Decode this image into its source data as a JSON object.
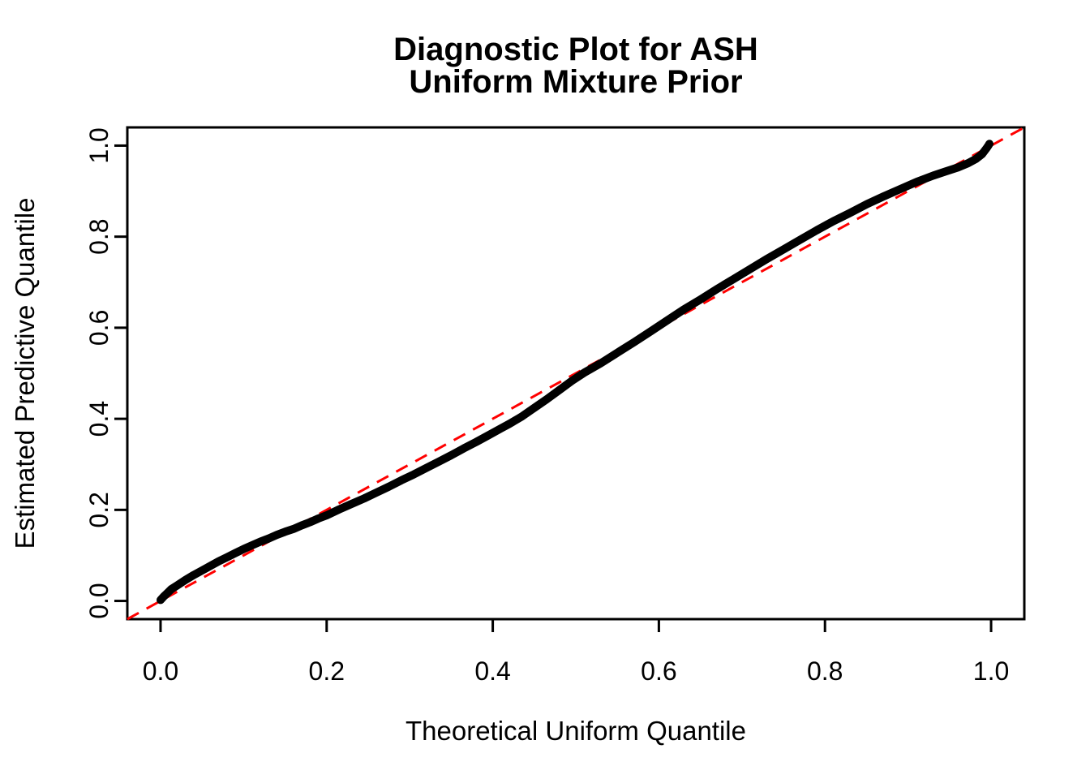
{
  "chart_data": {
    "type": "line",
    "title": "Diagnostic Plot for ASH\nUniform Mixture Prior",
    "title_lines": [
      "Diagnostic Plot for ASH",
      "Uniform Mixture Prior"
    ],
    "xlabel": "Theoretical Uniform Quantile",
    "ylabel": "Estimated Predictive Quantile",
    "xlim": [
      -0.04,
      1.04
    ],
    "ylim": [
      -0.04,
      1.04
    ],
    "x_ticks": [
      0.0,
      0.2,
      0.4,
      0.6,
      0.8,
      1.0
    ],
    "x_tick_labels": [
      "0.0",
      "0.2",
      "0.4",
      "0.6",
      "0.8",
      "1.0"
    ],
    "y_ticks": [
      0.0,
      0.2,
      0.4,
      0.6,
      0.8,
      1.0
    ],
    "y_tick_labels": [
      "0.0",
      "0.2",
      "0.4",
      "0.6",
      "0.8",
      "1.0"
    ],
    "grid": false,
    "legend": "none",
    "colors": {
      "curve": "#000000",
      "diagonal": "#FF0000",
      "background": "#FFFFFF",
      "box": "#000000"
    },
    "series": [
      {
        "name": "estimated-predictive-quantiles",
        "type": "line",
        "color": "#000000",
        "description": "Thick black QQ curve of estimated predictive quantile vs theoretical uniform quantile",
        "points": [
          [
            0.0,
            0.002
          ],
          [
            0.004,
            0.01
          ],
          [
            0.008,
            0.017
          ],
          [
            0.013,
            0.026
          ],
          [
            0.02,
            0.034
          ],
          [
            0.03,
            0.046
          ],
          [
            0.04,
            0.057
          ],
          [
            0.05,
            0.067
          ],
          [
            0.06,
            0.077
          ],
          [
            0.07,
            0.087
          ],
          [
            0.08,
            0.096
          ],
          [
            0.09,
            0.105
          ],
          [
            0.1,
            0.114
          ],
          [
            0.11,
            0.122
          ],
          [
            0.12,
            0.13
          ],
          [
            0.13,
            0.137
          ],
          [
            0.14,
            0.145
          ],
          [
            0.15,
            0.152
          ],
          [
            0.16,
            0.158
          ],
          [
            0.17,
            0.166
          ],
          [
            0.18,
            0.173
          ],
          [
            0.19,
            0.181
          ],
          [
            0.2,
            0.188
          ],
          [
            0.215,
            0.201
          ],
          [
            0.23,
            0.213
          ],
          [
            0.245,
            0.225
          ],
          [
            0.26,
            0.238
          ],
          [
            0.275,
            0.251
          ],
          [
            0.29,
            0.265
          ],
          [
            0.305,
            0.278
          ],
          [
            0.32,
            0.292
          ],
          [
            0.335,
            0.306
          ],
          [
            0.35,
            0.32
          ],
          [
            0.365,
            0.335
          ],
          [
            0.38,
            0.349
          ],
          [
            0.395,
            0.364
          ],
          [
            0.41,
            0.379
          ],
          [
            0.42,
            0.389
          ],
          [
            0.435,
            0.405
          ],
          [
            0.45,
            0.424
          ],
          [
            0.465,
            0.443
          ],
          [
            0.48,
            0.463
          ],
          [
            0.495,
            0.483
          ],
          [
            0.51,
            0.501
          ],
          [
            0.53,
            0.522
          ],
          [
            0.55,
            0.545
          ],
          [
            0.57,
            0.568
          ],
          [
            0.59,
            0.592
          ],
          [
            0.61,
            0.616
          ],
          [
            0.63,
            0.64
          ],
          [
            0.65,
            0.662
          ],
          [
            0.67,
            0.685
          ],
          [
            0.69,
            0.707
          ],
          [
            0.71,
            0.729
          ],
          [
            0.73,
            0.751
          ],
          [
            0.75,
            0.772
          ],
          [
            0.77,
            0.793
          ],
          [
            0.79,
            0.814
          ],
          [
            0.81,
            0.834
          ],
          [
            0.83,
            0.852
          ],
          [
            0.85,
            0.871
          ],
          [
            0.87,
            0.888
          ],
          [
            0.89,
            0.904
          ],
          [
            0.91,
            0.92
          ],
          [
            0.93,
            0.934
          ],
          [
            0.945,
            0.943
          ],
          [
            0.96,
            0.952
          ],
          [
            0.972,
            0.961
          ],
          [
            0.982,
            0.971
          ],
          [
            0.989,
            0.981
          ],
          [
            0.994,
            0.993
          ],
          [
            0.997,
            1.001
          ],
          [
            0.998,
            1.004
          ]
        ]
      },
      {
        "name": "reference-diagonal",
        "type": "dashed-line",
        "color": "#FF0000",
        "description": "Red dashed y = x reference line",
        "points": [
          [
            -0.04,
            -0.04
          ],
          [
            1.04,
            1.04
          ]
        ]
      }
    ]
  }
}
